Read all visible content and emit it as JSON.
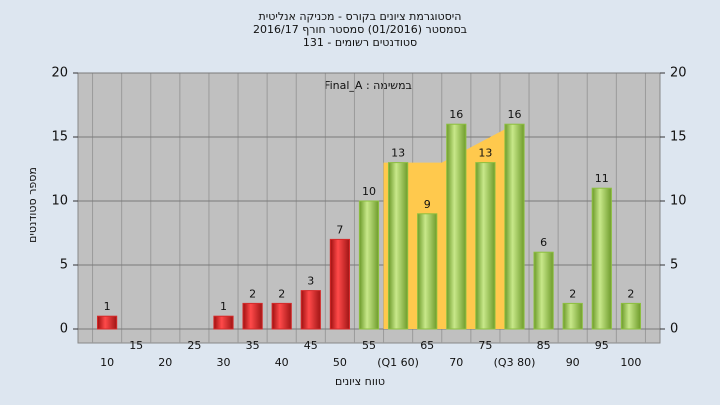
{
  "chart_data": {
    "type": "bar",
    "title": "היסטוגרמת ציונים בקורס - מכניקה אנליטית",
    "subtitle": "בסמסטר  (01/2016)  סמסטר חורף 2016/17",
    "subtitle2": "סטודנטים רשומים - 131",
    "annotation": "במשימה : Final_A",
    "x_label": "טווח ציונים",
    "y_label": "מספר סטודנטים",
    "categories": [
      "10",
      "15",
      "20",
      "25",
      "30",
      "35",
      "40",
      "45",
      "50",
      "55",
      "(Q1 60)",
      "65",
      "70",
      "75",
      "(Q3 80)",
      "85",
      "90",
      "95",
      "100"
    ],
    "values": [
      1,
      0,
      0,
      0,
      1,
      2,
      2,
      3,
      7,
      10,
      13,
      9,
      16,
      13,
      16,
      6,
      2,
      11,
      2
    ],
    "colors": [
      "#d42a2a",
      "#d42a2a",
      "#d42a2a",
      "#d42a2a",
      "#d42a2a",
      "#d42a2a",
      "#d42a2a",
      "#d42a2a",
      "#d42a2a",
      "#8cbf3f",
      "#8cbf3f",
      "#8cbf3f",
      "#8cbf3f",
      "#8cbf3f",
      "#8cbf3f",
      "#8cbf3f",
      "#8cbf3f",
      "#8cbf3f",
      "#8cbf3f"
    ],
    "ylim": [
      0,
      20
    ],
    "yticks": [
      0,
      5,
      10,
      15,
      20
    ],
    "grid": true
  }
}
